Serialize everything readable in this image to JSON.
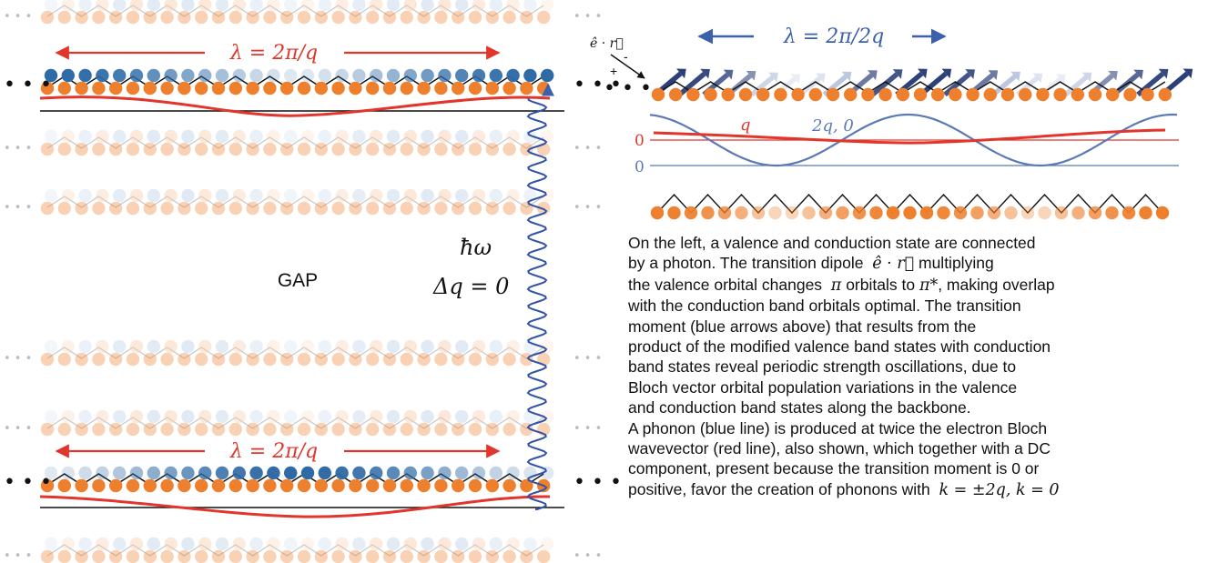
{
  "colors": {
    "orange": "#ee7f2d",
    "orange_light": "#f7c9a6",
    "blue_dark": "#2e6aa6",
    "blue_light": "#b7cde6",
    "red": "#e2352b",
    "phonon_blue": "#5b7ab5",
    "photon_blue": "#3153a8",
    "arrow_dark": "#2b3f78"
  },
  "left_panel": {
    "top_wavelength_label": "λ = 2π/q",
    "bottom_wavelength_label": "λ = 2π/q",
    "gap_label": "GAP",
    "photon_energy_label": "ħω",
    "momentum_label": "Δq = 0",
    "chain_ellipsis": "• • •"
  },
  "right_panel": {
    "dipole_label": "ê · r⃗",
    "minus_sign": "-",
    "plus_sign": "+",
    "wavelength_label": "λ = 2π/2q",
    "red_curve_label": "q",
    "blue_curve_label": "2q, 0",
    "red_zero_label": "0",
    "blue_zero_label": "0",
    "chain_ellipsis": "• • •"
  },
  "caption": {
    "lines": [
      "On the left, a valence and conduction state are connected",
      "by a photon.  The transition dipole",
      "the valence orbital changes",
      "with the conduction band orbitals optimal.  The transition",
      "moment (blue arrows above)  that results from the",
      "product of the modified valence band states with conduction",
      "band states reveal periodic strength oscillations,  due to",
      "Bloch vector orbital population variations in the valence",
      "and conduction band states along the backbone.",
      "A phonon (blue line) is produced at twice the  electron Bloch",
      "wavevector (red line), also shown, which together with a DC",
      "component, present because the transition moment is 0 or",
      "positive,   favor the creation of phonons with"
    ],
    "dipole_math": "ê · r⃗",
    "multiplying_text": "multiplying",
    "pi_math": "π",
    "orbitals_to_text": "orbitals to",
    "pi_star_math": "π*",
    "making_overlap_text": ", making overlap",
    "k_math": "k = ±2q, k = 0"
  }
}
